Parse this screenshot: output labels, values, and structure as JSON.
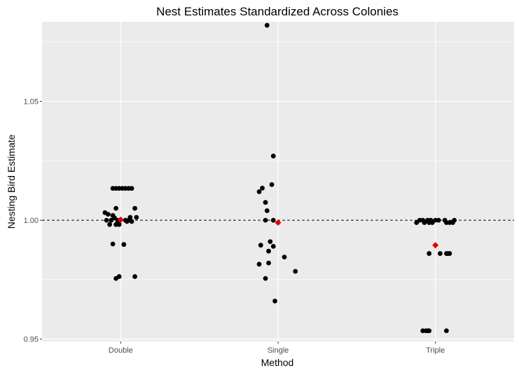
{
  "chart_data": {
    "type": "scatter",
    "title": "Nest Estimates Standardized Across Colonies",
    "xlabel": "Method",
    "ylabel": "Nesting Bird Estimate",
    "categories": [
      "Double",
      "Single",
      "Triple"
    ],
    "ylim": [
      0.949,
      1.0835
    ],
    "yticks": [
      0.95,
      1.0,
      1.05
    ],
    "ytick_labels": [
      "0.95",
      "1.00",
      "1.05"
    ],
    "reference_line": {
      "y": 1.0,
      "style": "dashed",
      "color": "#000000"
    },
    "grid": true,
    "background": "#ebebeb",
    "point_color": "#000000",
    "mean_color": "#e00000",
    "series": [
      {
        "category": "Double",
        "points": [
          {
            "dx": -0.05,
            "y": 1.0134
          },
          {
            "dx": -0.03,
            "y": 1.0134
          },
          {
            "dx": -0.01,
            "y": 1.0134
          },
          {
            "dx": 0.01,
            "y": 1.0134
          },
          {
            "dx": 0.03,
            "y": 1.0134
          },
          {
            "dx": 0.05,
            "y": 1.0134
          },
          {
            "dx": 0.07,
            "y": 1.0134
          },
          {
            "dx": -0.1,
            "y": 1.0032
          },
          {
            "dx": -0.08,
            "y": 1.0025
          },
          {
            "dx": -0.03,
            "y": 1.005
          },
          {
            "dx": 0.09,
            "y": 1.005
          },
          {
            "dx": -0.05,
            "y": 1.002
          },
          {
            "dx": -0.04,
            "y": 1.001
          },
          {
            "dx": -0.09,
            "y": 1.0
          },
          {
            "dx": -0.06,
            "y": 1.0
          },
          {
            "dx": -0.02,
            "y": 1.0
          },
          {
            "dx": 0.03,
            "y": 1.0
          },
          {
            "dx": 0.05,
            "y": 1.0
          },
          {
            "dx": 0.1,
            "y": 1.0012
          },
          {
            "dx": 0.06,
            "y": 1.0012
          },
          {
            "dx": -0.07,
            "y": 0.9982
          },
          {
            "dx": -0.03,
            "y": 0.9982
          },
          {
            "dx": -0.01,
            "y": 0.9982
          },
          {
            "dx": 0.04,
            "y": 0.9995
          },
          {
            "dx": 0.07,
            "y": 0.9995
          },
          {
            "dx": -0.05,
            "y": 0.99
          },
          {
            "dx": 0.02,
            "y": 0.9898
          },
          {
            "dx": -0.03,
            "y": 0.9755
          },
          {
            "dx": -0.01,
            "y": 0.9763
          },
          {
            "dx": 0.09,
            "y": 0.9763
          }
        ],
        "mean": 1.0002
      },
      {
        "category": "Single",
        "points": [
          {
            "dx": -0.07,
            "y": 1.082
          },
          {
            "dx": -0.03,
            "y": 1.027
          },
          {
            "dx": -0.04,
            "y": 1.015
          },
          {
            "dx": -0.1,
            "y": 1.0135
          },
          {
            "dx": -0.12,
            "y": 1.012
          },
          {
            "dx": -0.08,
            "y": 1.0075
          },
          {
            "dx": -0.07,
            "y": 1.004
          },
          {
            "dx": -0.08,
            "y": 1.0
          },
          {
            "dx": -0.03,
            "y": 1.0
          },
          {
            "dx": -0.05,
            "y": 0.991
          },
          {
            "dx": -0.11,
            "y": 0.9895
          },
          {
            "dx": -0.03,
            "y": 0.989
          },
          {
            "dx": -0.06,
            "y": 0.987
          },
          {
            "dx": 0.04,
            "y": 0.9845
          },
          {
            "dx": -0.06,
            "y": 0.982
          },
          {
            "dx": -0.12,
            "y": 0.9815
          },
          {
            "dx": 0.11,
            "y": 0.9785
          },
          {
            "dx": -0.08,
            "y": 0.9755
          },
          {
            "dx": -0.02,
            "y": 0.966
          }
        ],
        "mean": 0.999
      },
      {
        "category": "Triple",
        "points": [
          {
            "dx": -0.12,
            "y": 0.999
          },
          {
            "dx": -0.1,
            "y": 1.0
          },
          {
            "dx": -0.08,
            "y": 1.0
          },
          {
            "dx": -0.07,
            "y": 0.999
          },
          {
            "dx": -0.05,
            "y": 1.0
          },
          {
            "dx": -0.04,
            "y": 0.999
          },
          {
            "dx": -0.03,
            "y": 1.0
          },
          {
            "dx": -0.02,
            "y": 0.999
          },
          {
            "dx": 0.0,
            "y": 1.0
          },
          {
            "dx": 0.02,
            "y": 1.0
          },
          {
            "dx": 0.06,
            "y": 1.0
          },
          {
            "dx": 0.07,
            "y": 0.999
          },
          {
            "dx": 0.09,
            "y": 0.999
          },
          {
            "dx": 0.11,
            "y": 0.999
          },
          {
            "dx": 0.12,
            "y": 1.0
          },
          {
            "dx": -0.04,
            "y": 0.986
          },
          {
            "dx": 0.03,
            "y": 0.986
          },
          {
            "dx": 0.07,
            "y": 0.986
          },
          {
            "dx": 0.08,
            "y": 0.986
          },
          {
            "dx": 0.09,
            "y": 0.986
          },
          {
            "dx": -0.08,
            "y": 0.9535
          },
          {
            "dx": -0.06,
            "y": 0.9535
          },
          {
            "dx": -0.05,
            "y": 0.9535
          },
          {
            "dx": -0.04,
            "y": 0.9535
          },
          {
            "dx": 0.07,
            "y": 0.9535
          }
        ],
        "mean": 0.9895
      }
    ]
  }
}
